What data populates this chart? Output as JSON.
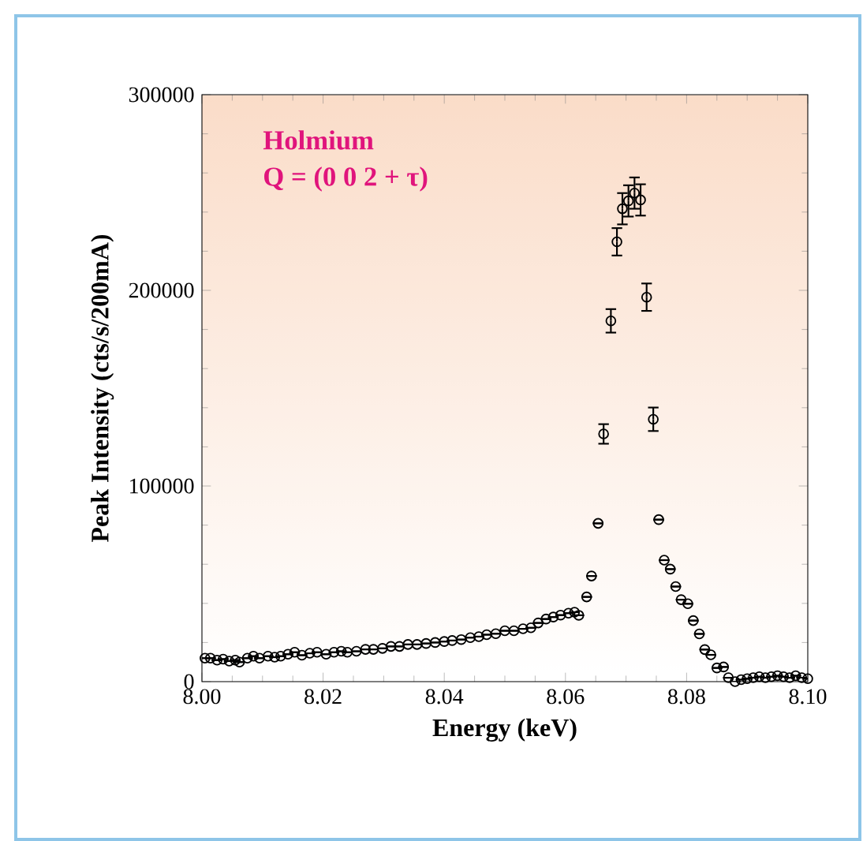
{
  "chart_data": {
    "type": "scatter",
    "xlabel": "Energy (keV)",
    "ylabel": "Peak Intensity (cts/s/200mA)",
    "annotations": [
      "**Holmium**",
      "**Q = (0 0 2 + τ)**"
    ],
    "xlim": [
      8.0,
      8.1
    ],
    "ylim": [
      0,
      300000
    ],
    "xticks": [
      {
        "value": 8.0,
        "label": "8.00"
      },
      {
        "value": 8.02,
        "label": "8.02"
      },
      {
        "value": 8.04,
        "label": "8.04"
      },
      {
        "value": 8.06,
        "label": "8.06"
      },
      {
        "value": 8.08,
        "label": "8.08"
      },
      {
        "value": 8.1,
        "label": "8.10"
      }
    ],
    "yticks": [
      0,
      100000,
      200000,
      300000
    ],
    "marker": "circle",
    "grid": false,
    "series": [
      {
        "color": "#000000",
        "x": [
          8.0005,
          8.0014,
          8.0025,
          8.0035,
          8.0045,
          8.0055,
          8.0062,
          8.0075,
          8.0085,
          8.0095,
          8.0109,
          8.012,
          8.013,
          8.0142,
          8.0153,
          8.0165,
          8.0178,
          8.019,
          8.0205,
          8.0218,
          8.023,
          8.024,
          8.0255,
          8.027,
          8.0283,
          8.0298,
          8.0312,
          8.0326,
          8.034,
          8.0355,
          8.037,
          8.0385,
          8.04,
          8.0413,
          8.0428,
          8.0443,
          8.0457,
          8.047,
          8.0485,
          8.05,
          8.0515,
          8.053,
          8.0543,
          8.0555,
          8.0568,
          8.058,
          8.0592,
          8.0605,
          8.0615,
          8.0622,
          8.0635,
          8.0643,
          8.0654,
          8.0663,
          8.0675,
          8.0685,
          8.0694,
          8.0704,
          8.0714,
          8.0724,
          8.0734,
          8.0745,
          8.0754,
          8.0763,
          8.0773,
          8.0782,
          8.0791,
          8.0802,
          8.0811,
          8.0821,
          8.083,
          8.084,
          8.085,
          8.0861,
          8.0869,
          8.088,
          8.089,
          8.09,
          8.091,
          8.092,
          8.093,
          8.094,
          8.095,
          8.096,
          8.097,
          8.098,
          8.099,
          8.1
        ],
        "values": [
          12000,
          12000,
          11000,
          11500,
          10500,
          11000,
          10000,
          12000,
          13000,
          12000,
          13000,
          12500,
          13000,
          14000,
          15000,
          13500,
          14500,
          15000,
          14000,
          15000,
          15500,
          15000,
          15500,
          16500,
          16500,
          17000,
          18000,
          18000,
          19000,
          19000,
          19500,
          20000,
          20500,
          21000,
          21500,
          22500,
          23000,
          24000,
          24500,
          26000,
          26000,
          27000,
          27500,
          30000,
          32000,
          33000,
          34000,
          35000,
          35500,
          33900,
          43300,
          54000,
          80900,
          126600,
          184400,
          224800,
          241700,
          245700,
          249700,
          246200,
          196500,
          134100,
          82800,
          62100,
          57500,
          48600,
          41900,
          39800,
          31200,
          24400,
          16400,
          13700,
          7000,
          7500,
          2000,
          0,
          1000,
          1500,
          2000,
          2500,
          2000,
          2500,
          3000,
          2500,
          2000,
          3000,
          2000,
          1500
        ],
        "errors": [
          null,
          null,
          null,
          null,
          null,
          null,
          null,
          null,
          null,
          null,
          null,
          null,
          null,
          null,
          null,
          null,
          null,
          null,
          null,
          null,
          null,
          null,
          null,
          null,
          null,
          null,
          null,
          null,
          null,
          null,
          null,
          null,
          null,
          null,
          null,
          null,
          null,
          null,
          null,
          null,
          null,
          null,
          null,
          null,
          null,
          null,
          null,
          null,
          null,
          null,
          null,
          null,
          null,
          5000,
          6000,
          7000,
          8000,
          8000,
          8000,
          8000,
          7000,
          6000,
          null,
          null,
          null,
          null,
          null,
          null,
          null,
          null,
          null,
          null,
          null,
          null,
          null,
          null,
          null,
          null,
          null,
          null,
          null,
          null,
          null,
          null,
          null,
          null,
          null,
          null
        ]
      }
    ]
  }
}
